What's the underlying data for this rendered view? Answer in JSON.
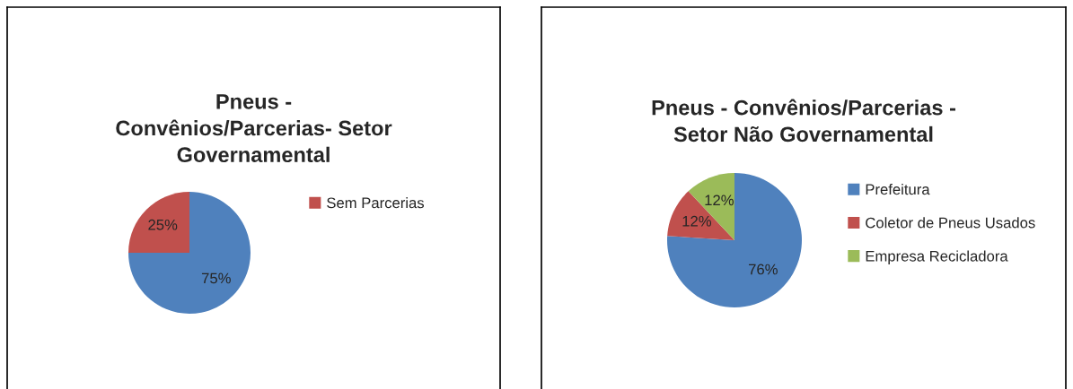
{
  "chart_data": [
    {
      "type": "pie",
      "title": "Pneus -\nConvênios/Parcerias- Setor\nGovernamental",
      "categories": [
        null,
        "Sem Parcerias"
      ],
      "values": [
        75,
        25
      ],
      "colors": [
        "#4f81bd",
        "#c0504d"
      ],
      "value_labels": [
        "75%",
        "25%"
      ],
      "legend": "right"
    },
    {
      "type": "pie",
      "title": "Pneus - Convênios/Parcerias -\nSetor Não Governamental",
      "categories": [
        "Prefeitura",
        "Coletor de Pneus Usados",
        "Empresa Recicladora"
      ],
      "values": [
        76,
        12,
        12
      ],
      "colors": [
        "#4f81bd",
        "#c0504d",
        "#9bbb59"
      ],
      "value_labels": [
        "76%",
        "12%",
        "12%"
      ],
      "legend": "right"
    }
  ]
}
